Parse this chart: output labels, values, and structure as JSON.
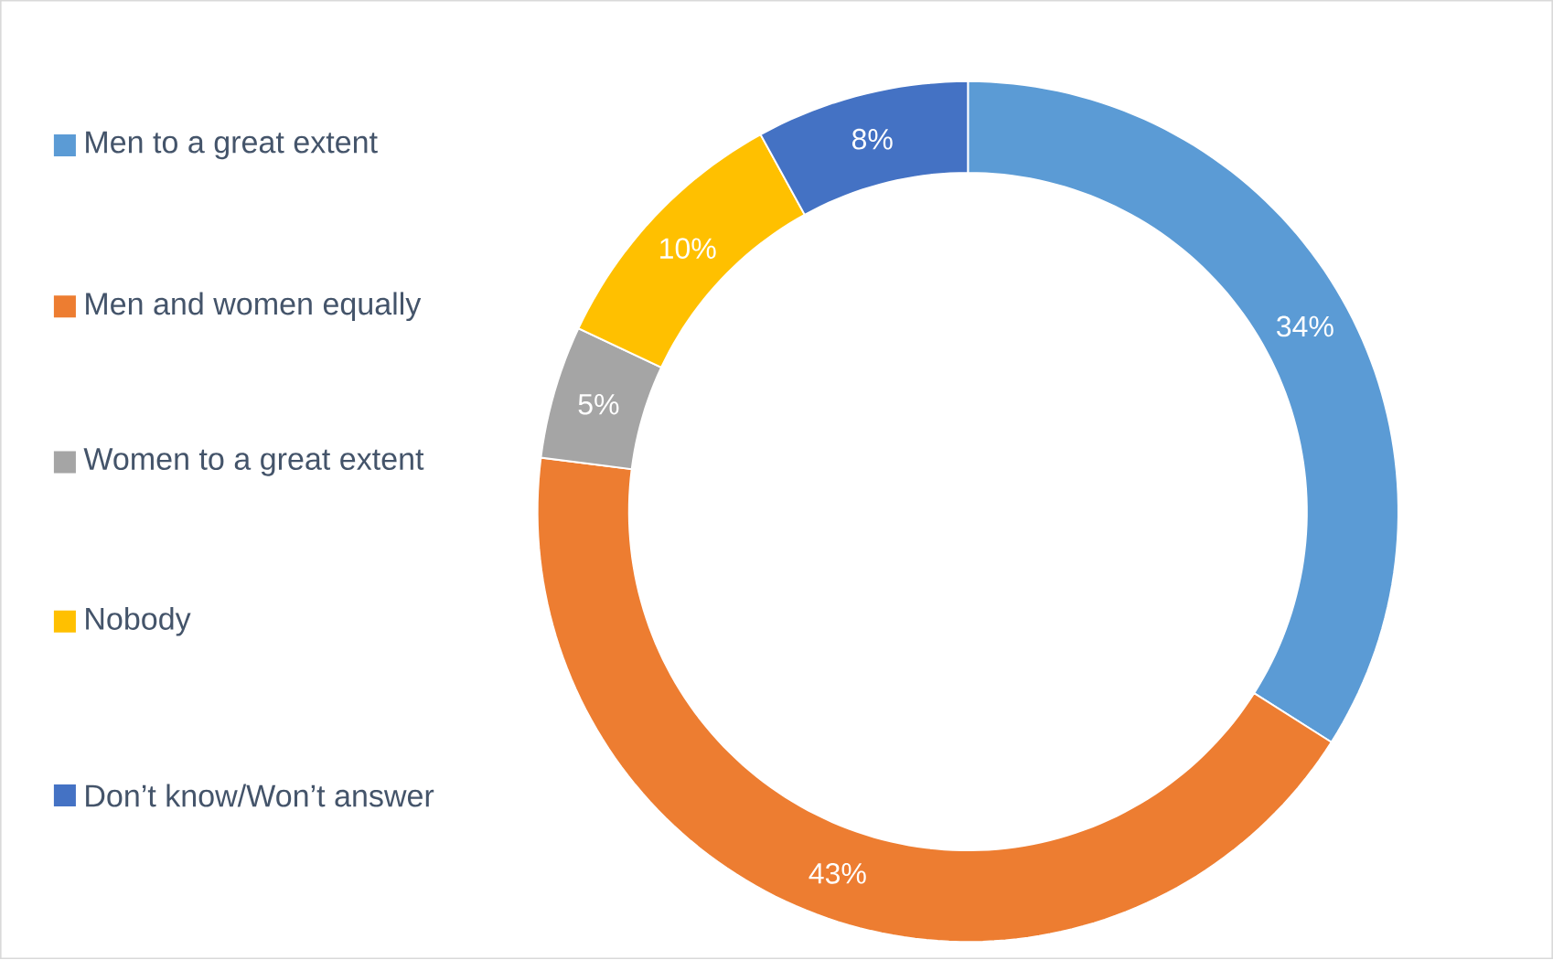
{
  "chart_data": {
    "type": "donut",
    "categories": [
      "Men to a great extent",
      "Men and women equally",
      "Women to a great extent",
      "Nobody",
      "Don’t know/Won’t answer"
    ],
    "values": [
      34,
      43,
      5,
      10,
      8
    ],
    "colors": [
      "#5b9bd5",
      "#ed7d31",
      "#a5a5a5",
      "#ffc000",
      "#4472c4"
    ],
    "value_labels": [
      "34%",
      "43%",
      "5%",
      "10%",
      "8%"
    ],
    "legend": "left"
  }
}
